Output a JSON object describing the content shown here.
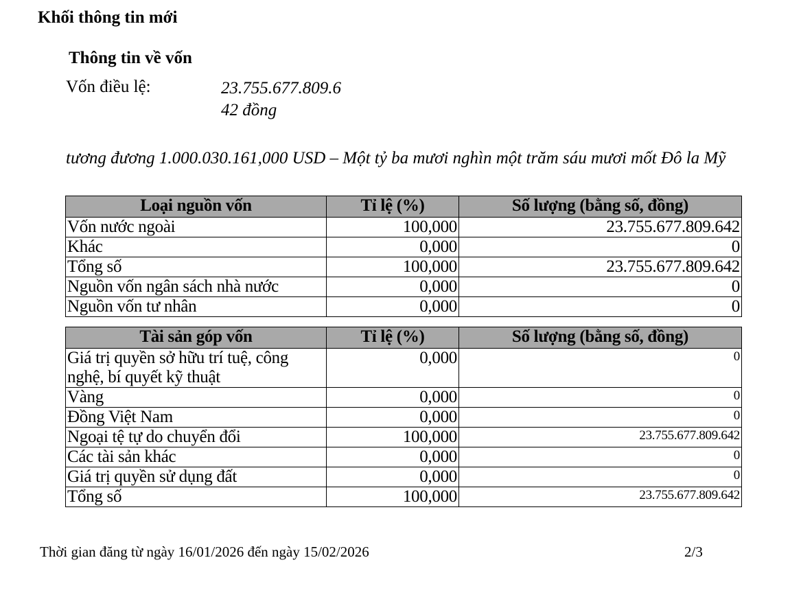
{
  "title": "Khối thông tin mới",
  "section_title": "Thông tin về vốn",
  "charter_capital": {
    "label": "Vốn điều lệ:",
    "value_line1": "23.755.677.809.6",
    "value_line2": "42 đồng",
    "equivalent": "tương đương 1.000.030.161,000 USD  – Một tỷ ba mươi nghìn một trăm sáu mươi mốt Đô la Mỹ"
  },
  "capital_sources": {
    "headers": [
      "Loại nguồn vốn",
      "Tỉ lệ (%)",
      "Số lượng (bằng số, đồng)"
    ],
    "rows": [
      [
        "Vốn nước ngoài",
        "100,000",
        "23.755.677.809.642"
      ],
      [
        "Khác",
        "0,000",
        "0"
      ],
      [
        "Tổng số",
        "100,000",
        "23.755.677.809.642"
      ],
      [
        "Nguồn vốn ngân sách nhà nước",
        "0,000",
        "0"
      ],
      [
        "Nguồn vốn tư nhân",
        "0,000",
        "0"
      ]
    ]
  },
  "contributed_assets": {
    "headers": [
      "Tài sản góp vốn",
      "Tỉ lệ (%)",
      "Số lượng (bằng số, đồng)"
    ],
    "rows": [
      [
        "Giá trị quyền sở hữu trí tuệ, công nghệ, bí quyết kỹ thuật",
        "0,000",
        "0"
      ],
      [
        "Vàng",
        "0,000",
        "0"
      ],
      [
        "Đồng Việt Nam",
        "0,000",
        "0"
      ],
      [
        "Ngoại tệ tự do chuyển đổi",
        "100,000",
        "23.755.677.809.642"
      ],
      [
        "Các tài sản khác",
        "0,000",
        "0"
      ],
      [
        "Giá trị quyền sử dụng đất",
        "0,000",
        "0"
      ],
      [
        "Tổng số",
        "100,000",
        "23.755.677.809.642"
      ]
    ]
  },
  "footer": {
    "posting_period": "Thời gian đăng  từ ngày 16/01/2026 đến ngày 15/02/2026",
    "page": "2/3"
  }
}
